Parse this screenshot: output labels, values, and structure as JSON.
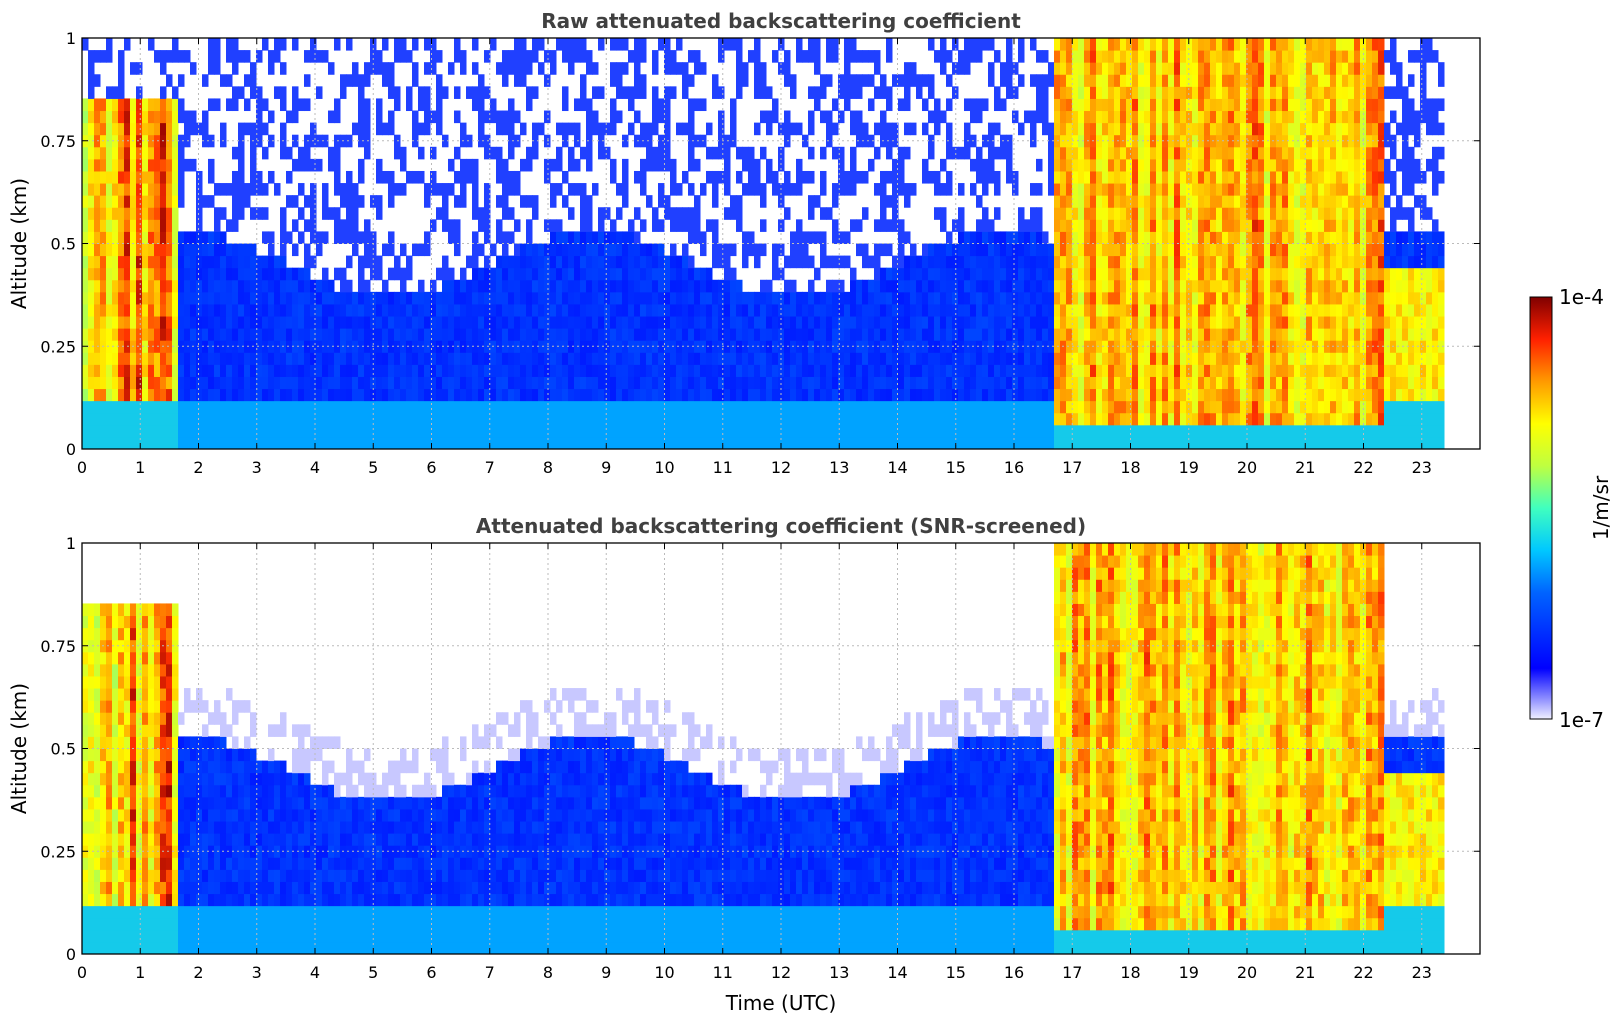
{
  "chart_data": [
    {
      "type": "heatmap",
      "title": "Raw attenuated backscattering coefficient",
      "xlabel": "",
      "ylabel": "Altitude (km)",
      "xlim": [
        0,
        24
      ],
      "ylim": [
        0,
        1
      ],
      "x_ticks": [
        "0",
        "1",
        "2",
        "3",
        "4",
        "5",
        "6",
        "7",
        "8",
        "9",
        "10",
        "11",
        "12",
        "13",
        "14",
        "15",
        "16",
        "17",
        "18",
        "19",
        "20",
        "21",
        "22",
        "23"
      ],
      "y_ticks": [
        "0",
        "0.25",
        "0.5",
        "0.75",
        "1"
      ],
      "y_tick_values": [
        0,
        0.25,
        0.5,
        0.75,
        1
      ],
      "grid": true,
      "colorscale": "jet (log)",
      "data_end_utc": 23.3
    },
    {
      "type": "heatmap",
      "title": "Attenuated backscattering coefficient (SNR-screened)",
      "xlabel": "Time (UTC)",
      "ylabel": "Altitude (km)",
      "xlim": [
        0,
        24
      ],
      "ylim": [
        0,
        1
      ],
      "x_ticks": [
        "0",
        "1",
        "2",
        "3",
        "4",
        "5",
        "6",
        "7",
        "8",
        "9",
        "10",
        "11",
        "12",
        "13",
        "14",
        "15",
        "16",
        "17",
        "18",
        "19",
        "20",
        "21",
        "22",
        "23"
      ],
      "y_ticks": [
        "0",
        "0.25",
        "0.5",
        "0.75",
        "1"
      ],
      "y_tick_values": [
        0,
        0.25,
        0.5,
        0.75,
        1
      ],
      "grid": true,
      "colorscale": "jet (log)",
      "data_end_utc": 23.3
    }
  ],
  "colorbar": {
    "max_label": "1e-4",
    "min_label": "1e-7",
    "unit_label": "1/m/sr",
    "scale": "log"
  }
}
